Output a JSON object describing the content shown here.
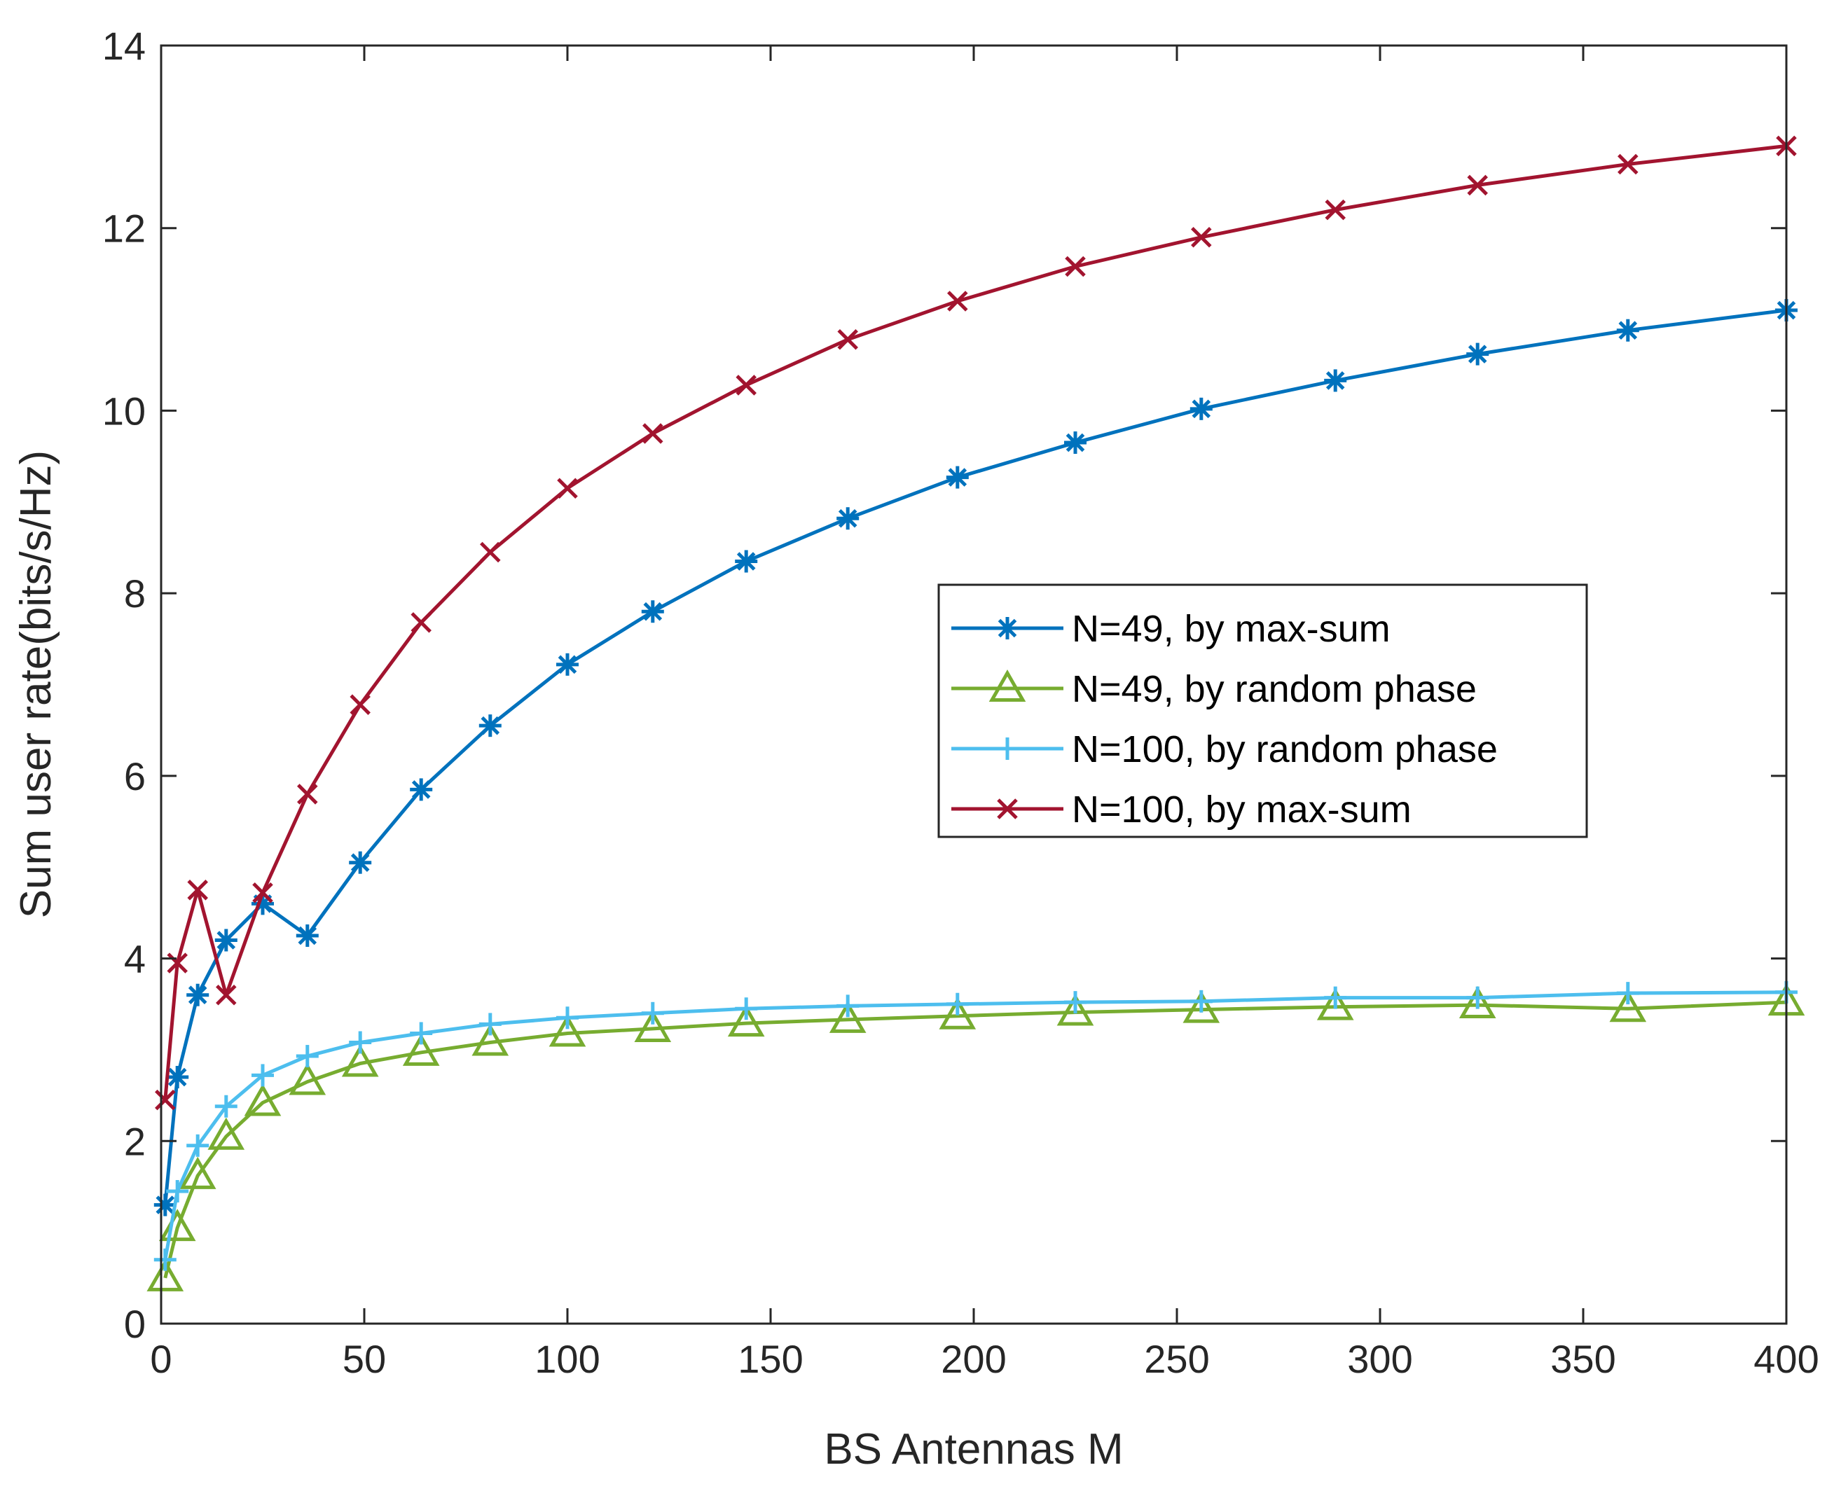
{
  "chart_data": {
    "type": "line",
    "title": "",
    "xlabel": "BS Antennas M",
    "ylabel": "Sum user rate(bits/s/Hz)",
    "xlim": [
      0,
      400
    ],
    "ylim": [
      0,
      14
    ],
    "xticks": [
      0,
      50,
      100,
      150,
      200,
      250,
      300,
      350,
      400
    ],
    "yticks": [
      0,
      2,
      4,
      6,
      8,
      10,
      12,
      14
    ],
    "grid": false,
    "legend_position": "center-right",
    "series": [
      {
        "name": "N=49,  by max-sum",
        "color": "#0072BD",
        "marker": "asterisk",
        "x": [
          1,
          4,
          9,
          16,
          25,
          36,
          49,
          64,
          81,
          100,
          121,
          144,
          169,
          196,
          225,
          256,
          289,
          324,
          361,
          400
        ],
        "y": [
          1.3,
          2.7,
          3.6,
          4.2,
          4.6,
          4.25,
          5.05,
          5.85,
          6.55,
          7.22,
          7.8,
          8.35,
          8.82,
          9.27,
          9.65,
          10.02,
          10.33,
          10.62,
          10.88,
          11.1
        ]
      },
      {
        "name": "N=49, by random phase",
        "color": "#77AC30",
        "marker": "triangle",
        "x": [
          1,
          4,
          9,
          16,
          25,
          36,
          49,
          64,
          81,
          100,
          121,
          144,
          169,
          196,
          225,
          256,
          289,
          324,
          361,
          400
        ],
        "y": [
          0.5,
          1.05,
          1.62,
          2.05,
          2.42,
          2.65,
          2.85,
          2.97,
          3.08,
          3.18,
          3.23,
          3.29,
          3.33,
          3.37,
          3.41,
          3.44,
          3.47,
          3.49,
          3.45,
          3.52
        ]
      },
      {
        "name": "N=100, by random phase",
        "color": "#4DBEEE",
        "marker": "plus",
        "x": [
          1,
          4,
          9,
          16,
          25,
          36,
          49,
          64,
          81,
          100,
          121,
          144,
          169,
          196,
          225,
          256,
          289,
          324,
          361,
          400
        ],
        "y": [
          0.7,
          1.45,
          1.95,
          2.38,
          2.72,
          2.93,
          3.08,
          3.18,
          3.28,
          3.35,
          3.4,
          3.45,
          3.48,
          3.5,
          3.52,
          3.53,
          3.57,
          3.57,
          3.62,
          3.63
        ]
      },
      {
        "name": "N=100, by max-sum",
        "color": "#A2142F",
        "marker": "x",
        "x": [
          1,
          4,
          9,
          16,
          25,
          36,
          49,
          64,
          81,
          100,
          121,
          144,
          169,
          196,
          225,
          256,
          289,
          324,
          361,
          400
        ],
        "y": [
          2.45,
          3.95,
          4.75,
          3.6,
          4.72,
          5.8,
          6.78,
          7.68,
          8.45,
          9.15,
          9.75,
          10.28,
          10.78,
          11.2,
          11.58,
          11.9,
          12.2,
          12.47,
          12.7,
          12.9
        ]
      }
    ]
  }
}
